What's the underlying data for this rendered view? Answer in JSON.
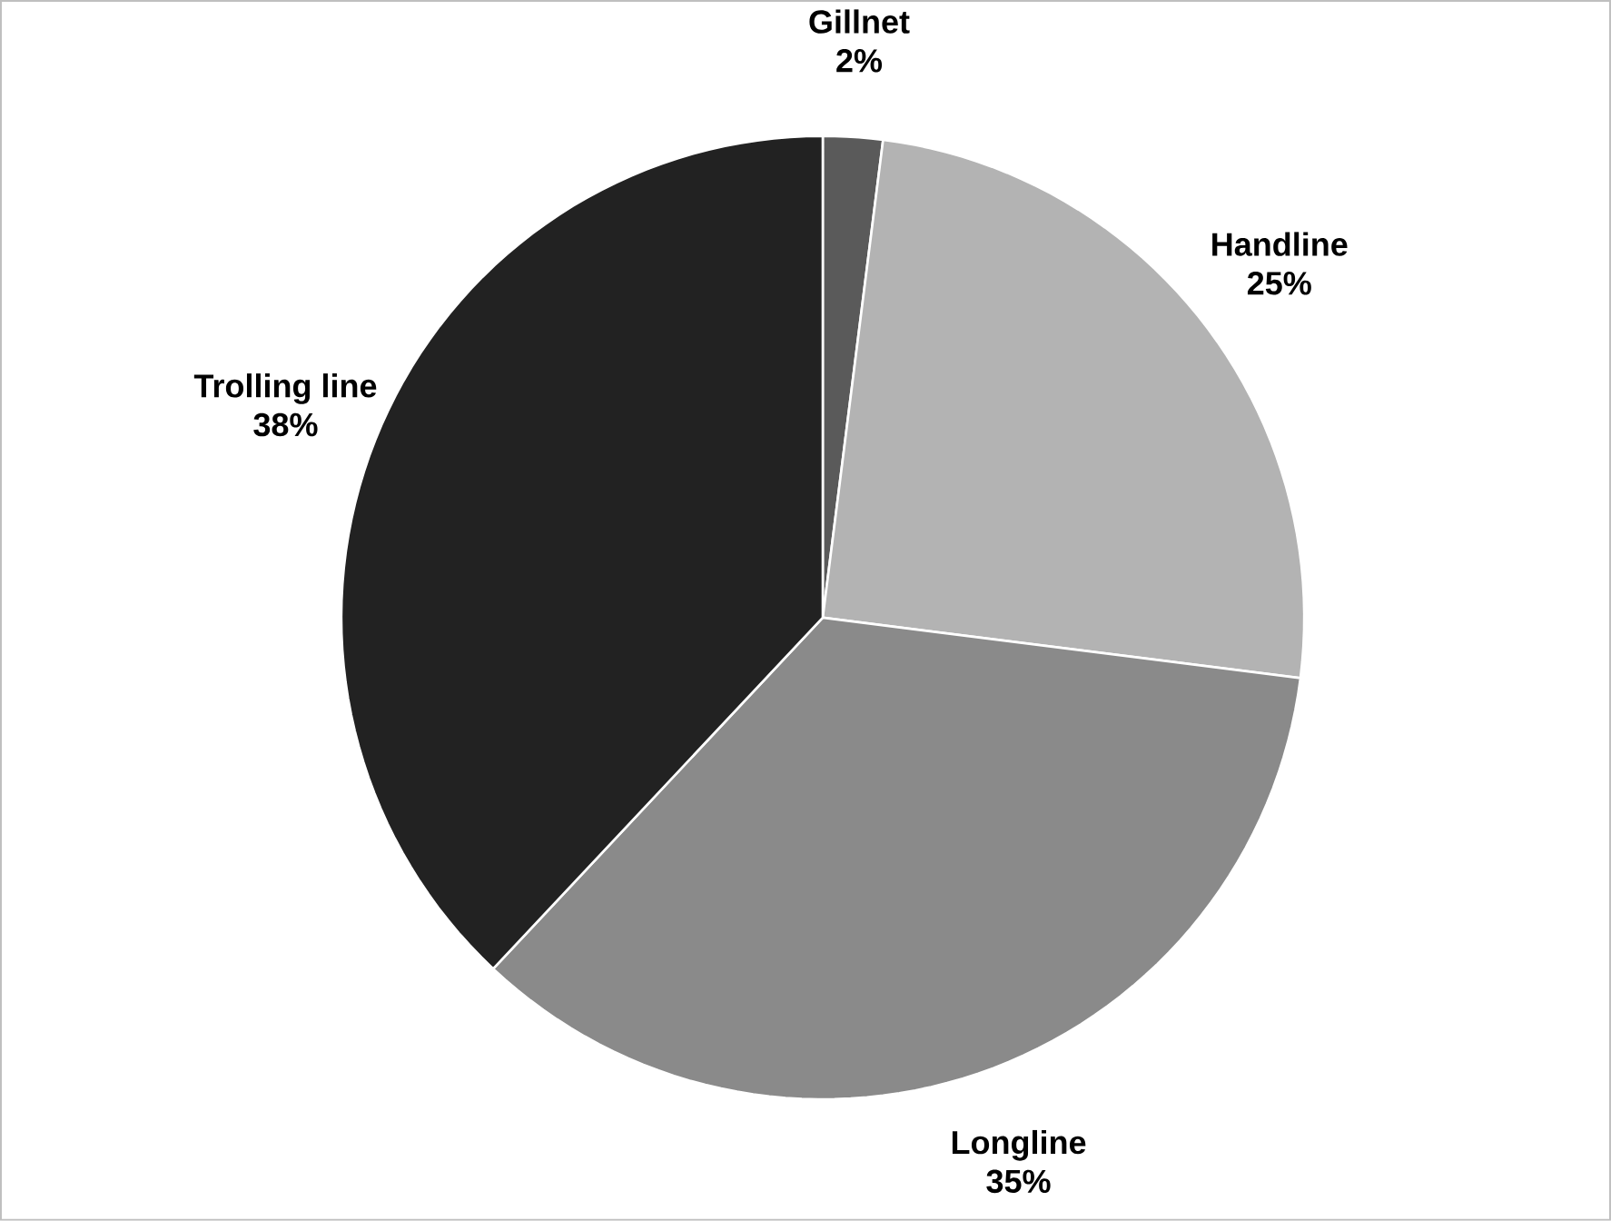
{
  "chart_data": {
    "type": "pie",
    "categories": [
      "Gillnet",
      "Handline",
      "Longline",
      "Trolling line"
    ],
    "values": [
      2,
      25,
      35,
      38
    ],
    "value_labels": [
      "2%",
      "25%",
      "35%",
      "38%"
    ],
    "colors": [
      "#5a5a5a",
      "#b3b3b3",
      "#8a8a8a",
      "#222222"
    ]
  }
}
